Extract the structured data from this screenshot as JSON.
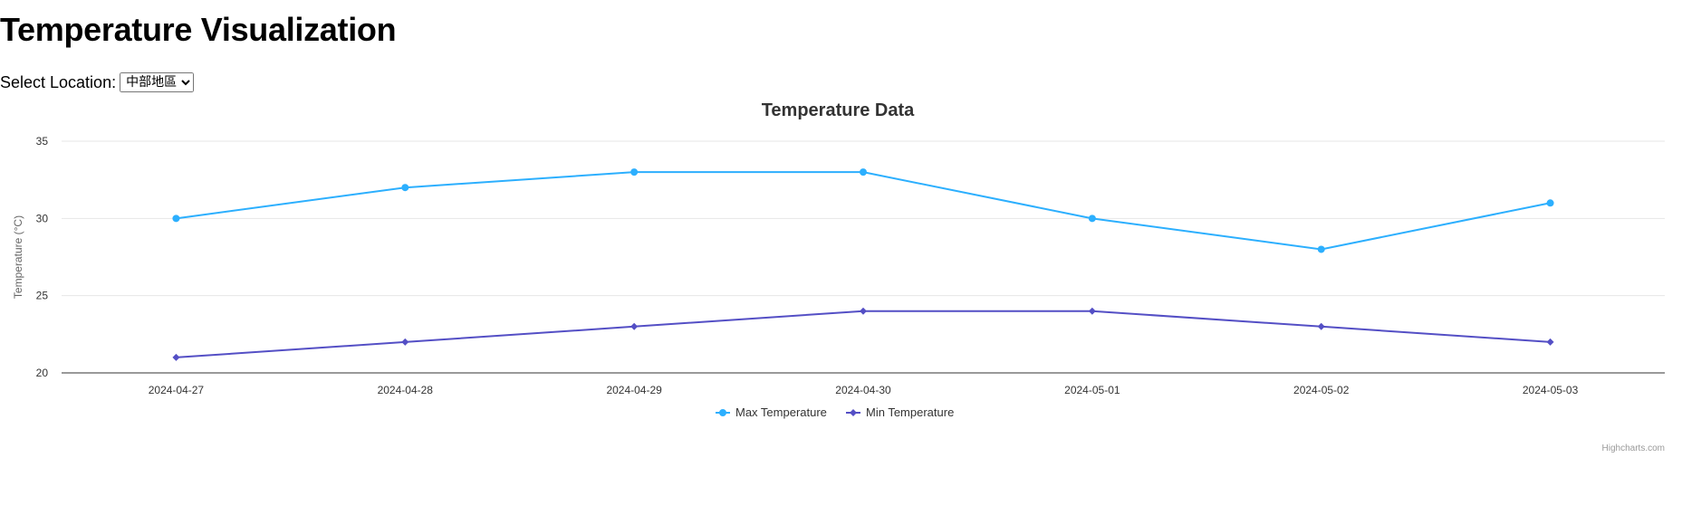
{
  "page": {
    "heading": "Temperature Visualization",
    "location_label": "Select Location:",
    "location_selected": "中部地區",
    "credits": "Highcharts.com"
  },
  "colors": {
    "max_series": "#2caffe",
    "min_series": "#544fc5",
    "grid": "#e6e6e6",
    "axis_line": "#333333"
  },
  "chart_data": {
    "type": "line",
    "title": "Temperature Data",
    "xlabel": "",
    "ylabel": "Temperature (°C)",
    "categories": [
      "2024-04-27",
      "2024-04-28",
      "2024-04-29",
      "2024-04-30",
      "2024-05-01",
      "2024-05-02",
      "2024-05-03"
    ],
    "yticks": [
      20,
      25,
      30,
      35
    ],
    "ylim": [
      20,
      35
    ],
    "grid": true,
    "legend_position": "bottom-center",
    "series": [
      {
        "name": "Max Temperature",
        "marker": "circle",
        "values": [
          30,
          32,
          33,
          33,
          30,
          28,
          31
        ]
      },
      {
        "name": "Min Temperature",
        "marker": "diamond",
        "values": [
          21,
          22,
          23,
          24,
          24,
          23,
          22
        ]
      }
    ]
  }
}
